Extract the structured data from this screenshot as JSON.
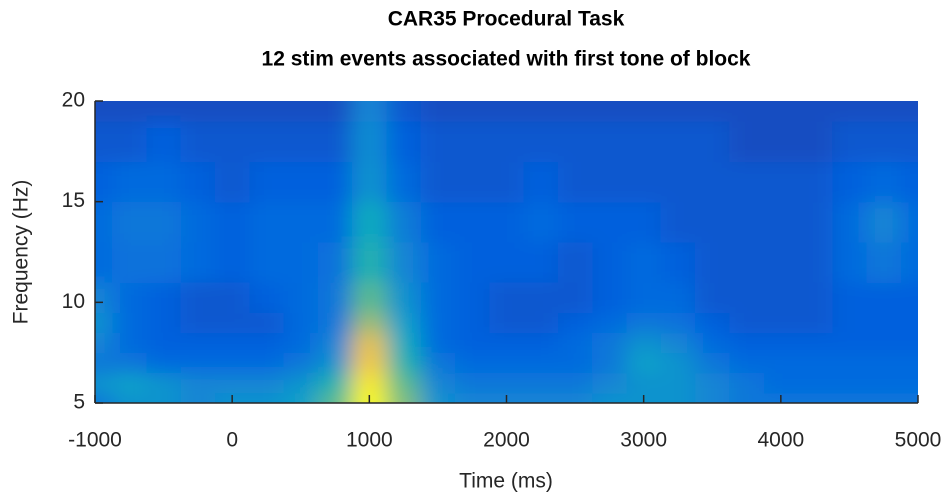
{
  "chart_data": {
    "type": "heatmap",
    "title": "CAR35 Procedural Task",
    "subtitle": "12 stim events associated with first tone of block",
    "x_label": "Time (ms)",
    "y_label": "Frequency (Hz)",
    "xlim": [
      -1000,
      5000
    ],
    "ylim": [
      5,
      20
    ],
    "xticks": [
      -1000,
      0,
      1000,
      2000,
      3000,
      4000,
      5000
    ],
    "yticks": [
      5,
      10,
      15,
      20
    ],
    "colormap": [
      "#352a87",
      "#0363e1",
      "#1485d4",
      "#06a7c6",
      "#38b99e",
      "#92bf73",
      "#d9ba56",
      "#fcce2e",
      "#f9fb0e"
    ],
    "x": [
      -1000,
      -750,
      -500,
      -250,
      0,
      250,
      500,
      750,
      1000,
      1250,
      1500,
      1750,
      2000,
      2250,
      2500,
      2750,
      3000,
      3250,
      3500,
      3750,
      4000,
      4250,
      4500,
      4750,
      5000
    ],
    "y": [
      5,
      6,
      7,
      8,
      9,
      10,
      12,
      14,
      16,
      18,
      20
    ],
    "z": [
      [
        0.2,
        0.3,
        0.3,
        0.25,
        0.3,
        0.3,
        0.35,
        0.55,
        1.0,
        0.6,
        0.3,
        0.25,
        0.25,
        0.25,
        0.25,
        0.3,
        0.3,
        0.3,
        0.25,
        0.2,
        0.2,
        0.2,
        0.2,
        0.2,
        0.2
      ],
      [
        0.3,
        0.35,
        0.3,
        0.25,
        0.25,
        0.25,
        0.3,
        0.45,
        0.95,
        0.55,
        0.25,
        0.2,
        0.2,
        0.2,
        0.2,
        0.25,
        0.3,
        0.3,
        0.25,
        0.2,
        0.15,
        0.15,
        0.15,
        0.15,
        0.15
      ],
      [
        0.2,
        0.2,
        0.15,
        0.15,
        0.15,
        0.15,
        0.2,
        0.3,
        0.85,
        0.45,
        0.2,
        0.15,
        0.15,
        0.15,
        0.15,
        0.2,
        0.35,
        0.3,
        0.2,
        0.15,
        0.15,
        0.15,
        0.15,
        0.15,
        0.15
      ],
      [
        0.25,
        0.15,
        0.12,
        0.12,
        0.12,
        0.12,
        0.15,
        0.25,
        0.8,
        0.4,
        0.15,
        0.12,
        0.12,
        0.12,
        0.15,
        0.2,
        0.3,
        0.25,
        0.15,
        0.12,
        0.12,
        0.12,
        0.12,
        0.12,
        0.12
      ],
      [
        0.3,
        0.15,
        0.12,
        0.1,
        0.1,
        0.1,
        0.15,
        0.2,
        0.65,
        0.35,
        0.15,
        0.12,
        0.1,
        0.1,
        0.12,
        0.15,
        0.2,
        0.18,
        0.12,
        0.1,
        0.1,
        0.1,
        0.12,
        0.12,
        0.12
      ],
      [
        0.25,
        0.15,
        0.12,
        0.1,
        0.1,
        0.12,
        0.15,
        0.2,
        0.55,
        0.3,
        0.15,
        0.12,
        0.1,
        0.1,
        0.1,
        0.12,
        0.15,
        0.15,
        0.1,
        0.1,
        0.1,
        0.1,
        0.12,
        0.12,
        0.12
      ],
      [
        0.15,
        0.18,
        0.18,
        0.15,
        0.12,
        0.15,
        0.15,
        0.18,
        0.45,
        0.25,
        0.15,
        0.12,
        0.12,
        0.12,
        0.1,
        0.12,
        0.15,
        0.12,
        0.1,
        0.1,
        0.1,
        0.1,
        0.15,
        0.2,
        0.15
      ],
      [
        0.15,
        0.2,
        0.2,
        0.15,
        0.12,
        0.15,
        0.15,
        0.15,
        0.4,
        0.22,
        0.12,
        0.12,
        0.12,
        0.15,
        0.12,
        0.12,
        0.12,
        0.1,
        0.1,
        0.1,
        0.1,
        0.1,
        0.15,
        0.25,
        0.15
      ],
      [
        0.12,
        0.15,
        0.15,
        0.12,
        0.1,
        0.12,
        0.12,
        0.12,
        0.3,
        0.15,
        0.1,
        0.1,
        0.1,
        0.12,
        0.1,
        0.1,
        0.1,
        0.1,
        0.1,
        0.1,
        0.1,
        0.1,
        0.12,
        0.15,
        0.12
      ],
      [
        0.1,
        0.1,
        0.12,
        0.1,
        0.1,
        0.1,
        0.1,
        0.1,
        0.28,
        0.12,
        0.1,
        0.1,
        0.1,
        0.1,
        0.1,
        0.1,
        0.1,
        0.1,
        0.1,
        0.08,
        0.08,
        0.08,
        0.1,
        0.1,
        0.1
      ],
      [
        0.08,
        0.08,
        0.08,
        0.08,
        0.08,
        0.08,
        0.08,
        0.08,
        0.25,
        0.1,
        0.08,
        0.08,
        0.08,
        0.08,
        0.08,
        0.08,
        0.08,
        0.08,
        0.08,
        0.08,
        0.08,
        0.08,
        0.08,
        0.08,
        0.08
      ]
    ]
  }
}
